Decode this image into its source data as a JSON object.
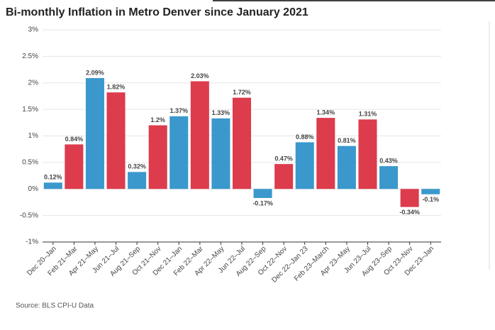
{
  "chart_data": {
    "type": "bar",
    "title": "Bi-monthly Inflation in Metro Denver since January 2021",
    "source": "Source: BLS CPI-U Data",
    "categories": [
      "Dec 20–Jan",
      "Feb 21–Mar",
      "Apr 21–May",
      "Jun 21–Jul",
      "Aug 21–Sep",
      "Oct 21–Nov",
      "Dec 21–Jan",
      "Feb 22–Mar",
      "Apr 22–May",
      "Jun 22–Jul",
      "Aug 22–Sep",
      "Oct 22–Nov",
      "Dec 22–Jan 23",
      "Feb 23–March",
      "Apr 23–May",
      "Jun 23–Jul",
      "Aug 23–Sep",
      "Oct 23–Nov",
      "Dec 23–Jan"
    ],
    "values": [
      0.12,
      0.84,
      2.09,
      1.82,
      0.32,
      1.2,
      1.37,
      2.03,
      1.33,
      1.72,
      -0.17,
      0.47,
      0.88,
      1.34,
      0.81,
      1.31,
      0.43,
      -0.34,
      -0.1
    ],
    "value_labels": [
      "0.12%",
      "0.84%",
      "2.09%",
      "1.82%",
      "0.32%",
      "1.2%",
      "1.37%",
      "2.03%",
      "1.33%",
      "1.72%",
      "-0.17%",
      "0.47%",
      "0.88%",
      "1.34%",
      "0.81%",
      "1.31%",
      "0.43%",
      "-0.34%",
      "-0.1%"
    ],
    "colors": [
      "#3a98cc",
      "#dc3c4c",
      "#3a98cc",
      "#dc3c4c",
      "#3a98cc",
      "#dc3c4c",
      "#3a98cc",
      "#dc3c4c",
      "#3a98cc",
      "#dc3c4c",
      "#3a98cc",
      "#dc3c4c",
      "#3a98cc",
      "#dc3c4c",
      "#3a98cc",
      "#dc3c4c",
      "#3a98cc",
      "#dc3c4c",
      "#3a98cc"
    ],
    "ylim": [
      -1,
      3
    ],
    "yticks": [
      {
        "value": -1,
        "label": "-1%"
      },
      {
        "value": -0.5,
        "label": "-0.5%"
      },
      {
        "value": 0,
        "label": "0%"
      },
      {
        "value": 0.5,
        "label": "0.5%"
      },
      {
        "value": 1,
        "label": "1%"
      },
      {
        "value": 1.5,
        "label": "1.5%"
      },
      {
        "value": 2,
        "label": "2%"
      },
      {
        "value": 2.5,
        "label": "2.5%"
      },
      {
        "value": 3,
        "label": "3%"
      }
    ],
    "grid": true
  }
}
